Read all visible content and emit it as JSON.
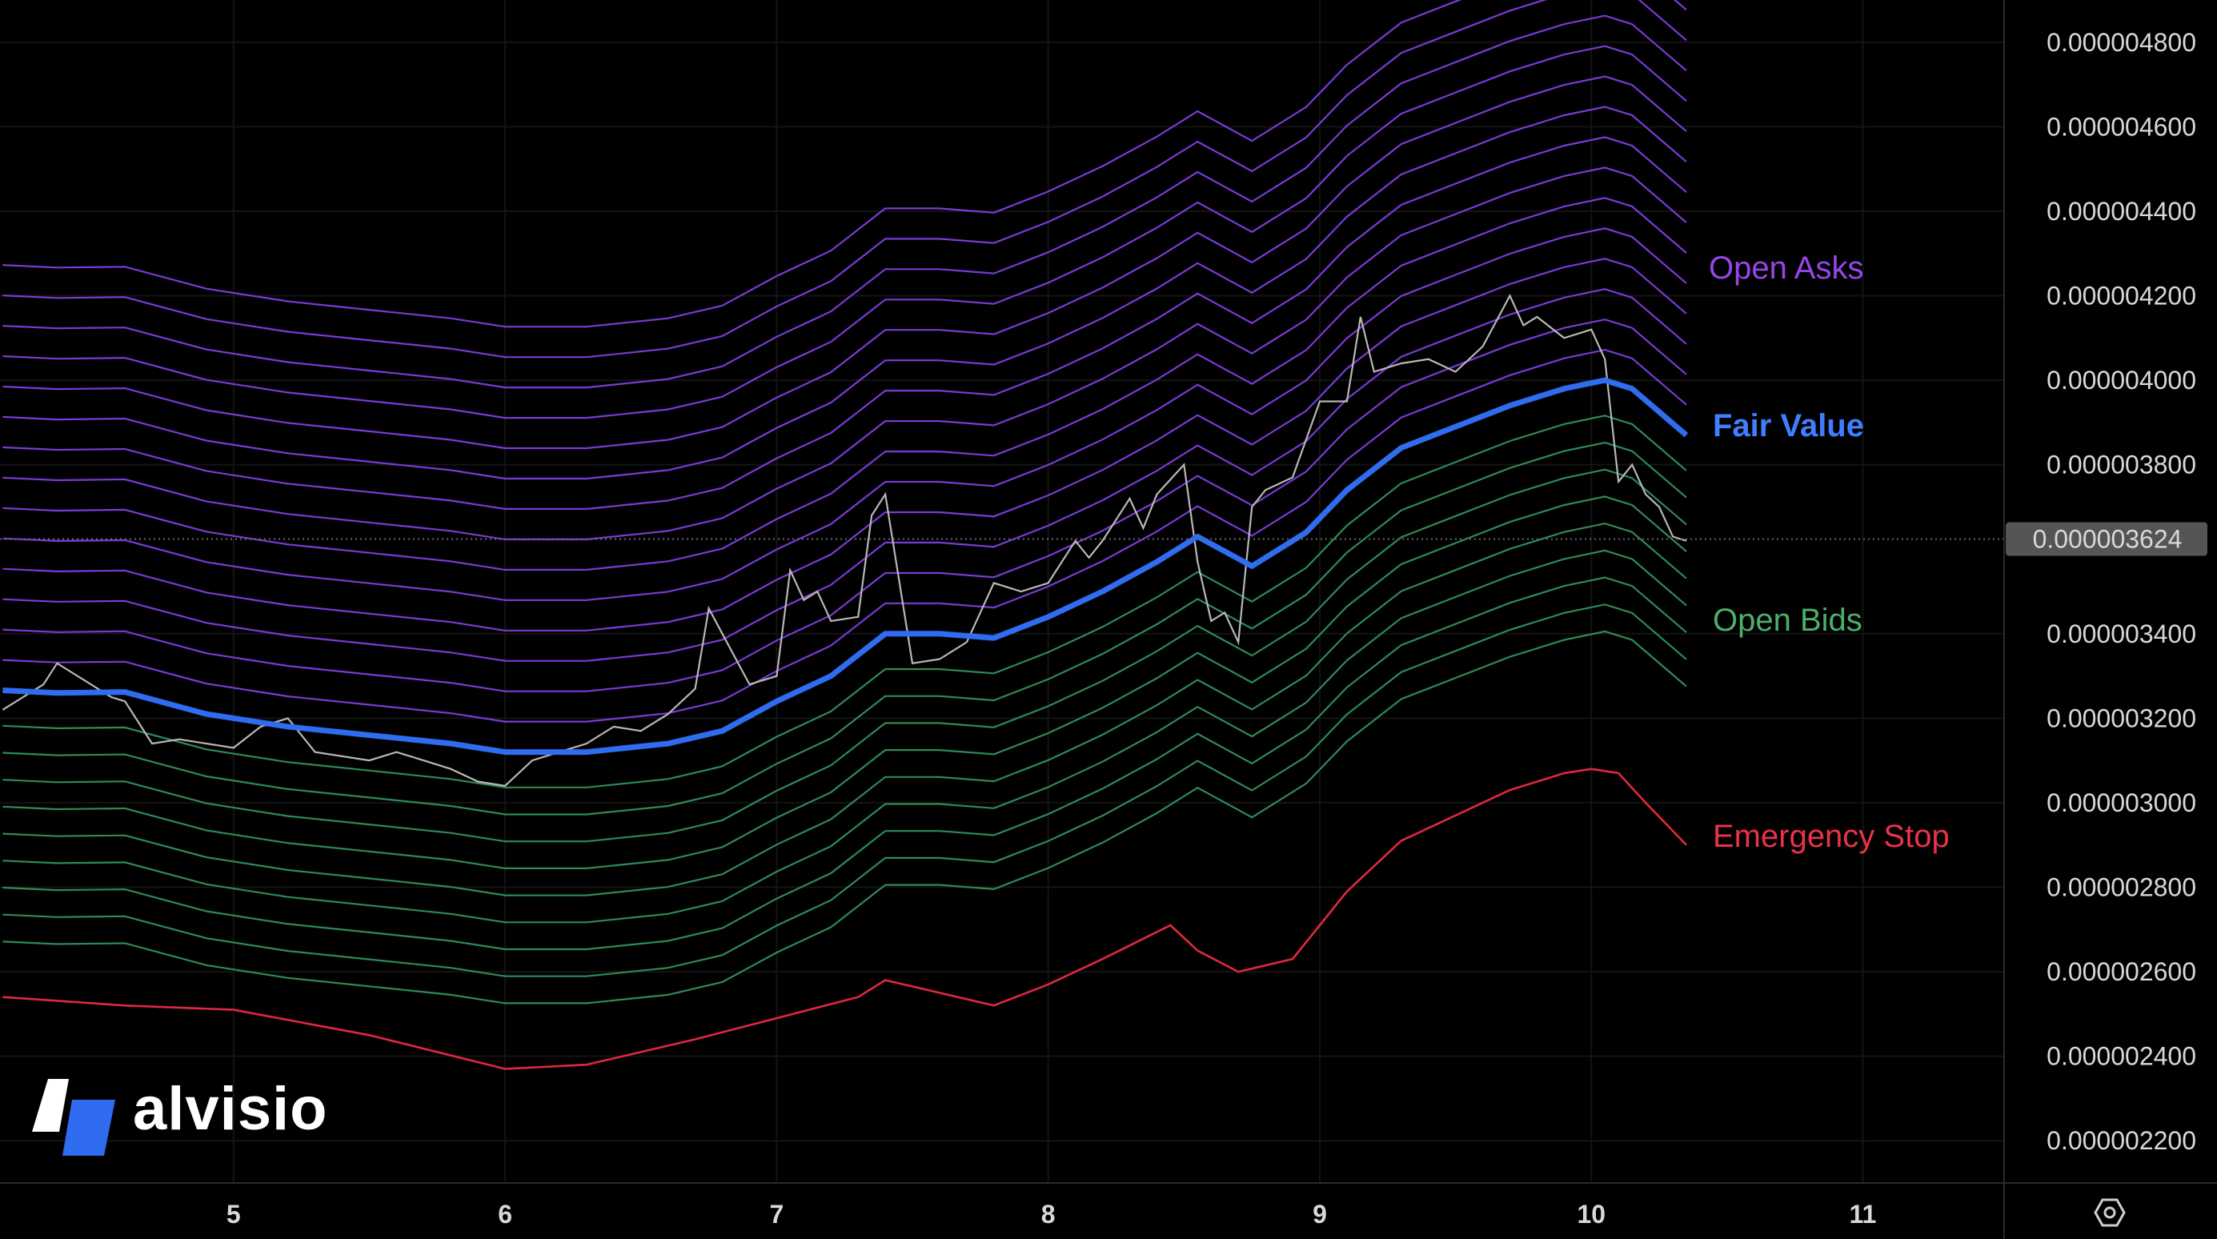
{
  "brand": {
    "name": "alvisio"
  },
  "chart_data": {
    "type": "line",
    "y_ticks": [
      "0.000004800",
      "0.000004600",
      "0.000004400",
      "0.000004200",
      "0.000004000",
      "0.000003800",
      "0.000003400",
      "0.000003200",
      "0.000003000",
      "0.000002800",
      "0.000002600",
      "0.000002400",
      "0.000002200"
    ],
    "ylim": [
      2.1e-06,
      4.9e-06
    ],
    "x_ticks": [
      "5",
      "6",
      "7",
      "8",
      "9",
      "10",
      "11"
    ],
    "x_tick_values": [
      5,
      6,
      7,
      8,
      9,
      10,
      11
    ],
    "xlim": [
      4.14,
      11.52
    ],
    "current_price": 3.624e-06,
    "current_price_label": "0.000003624",
    "band_step": 6.72e-08,
    "ask_levels": 14,
    "bid_levels": 9,
    "labels": {
      "open_asks": "Open Asks",
      "fair_value": "Fair Value",
      "open_bids": "Open Bids",
      "emergency_stop": "Emergency Stop"
    },
    "colors": {
      "fair_value": "#2f6cf0",
      "asks": "#7b3ad6",
      "bids": "#2e8b57",
      "emergency_stop": "#e0283f",
      "price": "#b8b8b8",
      "grid": "#141414",
      "ask_label": "#9646e6",
      "bid_label": "#4caf6a",
      "fair_label": "#3f7fff",
      "stop_label": "#e8334a"
    },
    "series": [
      {
        "name": "Fair Value",
        "x": [
          4.15,
          4.35,
          4.6,
          4.9,
          5.2,
          5.5,
          5.8,
          6.0,
          6.3,
          6.6,
          6.8,
          7.0,
          7.2,
          7.4,
          7.6,
          7.8,
          8.0,
          8.2,
          8.4,
          8.55,
          8.75,
          8.95,
          9.1,
          9.3,
          9.5,
          9.7,
          9.9,
          10.05,
          10.15,
          10.35
        ],
        "y": [
          3.266e-06,
          3.26e-06,
          3.262e-06,
          3.21e-06,
          3.18e-06,
          3.16e-06,
          3.14e-06,
          3.12e-06,
          3.12e-06,
          3.14e-06,
          3.17e-06,
          3.24e-06,
          3.3e-06,
          3.4e-06,
          3.4e-06,
          3.39e-06,
          3.44e-06,
          3.5e-06,
          3.57e-06,
          3.63e-06,
          3.56e-06,
          3.64e-06,
          3.74e-06,
          3.84e-06,
          3.89e-06,
          3.94e-06,
          3.98e-06,
          4e-06,
          3.98e-06,
          3.87e-06
        ]
      },
      {
        "name": "Emergency Stop",
        "x": [
          4.15,
          4.6,
          5.0,
          5.5,
          6.0,
          6.3,
          6.7,
          7.0,
          7.3,
          7.4,
          7.8,
          8.0,
          8.2,
          8.45,
          8.55,
          8.7,
          8.9,
          9.0,
          9.1,
          9.3,
          9.5,
          9.7,
          9.9,
          10.0,
          10.1,
          10.2,
          10.35
        ],
        "y": [
          2.54e-06,
          2.52e-06,
          2.51e-06,
          2.45e-06,
          2.37e-06,
          2.38e-06,
          2.44e-06,
          2.49e-06,
          2.54e-06,
          2.58e-06,
          2.52e-06,
          2.57e-06,
          2.63e-06,
          2.71e-06,
          2.65e-06,
          2.6e-06,
          2.63e-06,
          2.71e-06,
          2.79e-06,
          2.91e-06,
          2.97e-06,
          3.03e-06,
          3.07e-06,
          3.08e-06,
          3.07e-06,
          3e-06,
          2.9e-06
        ]
      },
      {
        "name": "Price",
        "x": [
          4.15,
          4.3,
          4.35,
          4.45,
          4.55,
          4.6,
          4.7,
          4.8,
          5.0,
          5.1,
          5.2,
          5.3,
          5.5,
          5.6,
          5.7,
          5.8,
          5.9,
          6.0,
          6.1,
          6.2,
          6.3,
          6.4,
          6.5,
          6.6,
          6.7,
          6.75,
          6.8,
          6.9,
          7.0,
          7.05,
          7.1,
          7.15,
          7.2,
          7.3,
          7.35,
          7.4,
          7.5,
          7.6,
          7.7,
          7.8,
          7.9,
          8.0,
          8.1,
          8.15,
          8.2,
          8.3,
          8.35,
          8.4,
          8.5,
          8.55,
          8.6,
          8.65,
          8.7,
          8.75,
          8.8,
          8.9,
          9.0,
          9.1,
          9.15,
          9.2,
          9.3,
          9.4,
          9.5,
          9.6,
          9.7,
          9.75,
          9.8,
          9.9,
          10.0,
          10.05,
          10.1,
          10.15,
          10.2,
          10.25,
          10.3,
          10.35
        ],
        "y": [
          3.22e-06,
          3.28e-06,
          3.33e-06,
          3.29e-06,
          3.25e-06,
          3.24e-06,
          3.14e-06,
          3.15e-06,
          3.13e-06,
          3.18e-06,
          3.2e-06,
          3.12e-06,
          3.1e-06,
          3.12e-06,
          3.1e-06,
          3.08e-06,
          3.05e-06,
          3.04e-06,
          3.1e-06,
          3.12e-06,
          3.14e-06,
          3.18e-06,
          3.17e-06,
          3.21e-06,
          3.27e-06,
          3.46e-06,
          3.4e-06,
          3.28e-06,
          3.3e-06,
          3.55e-06,
          3.48e-06,
          3.5e-06,
          3.43e-06,
          3.44e-06,
          3.68e-06,
          3.73e-06,
          3.33e-06,
          3.34e-06,
          3.38e-06,
          3.52e-06,
          3.5e-06,
          3.52e-06,
          3.62e-06,
          3.58e-06,
          3.62e-06,
          3.72e-06,
          3.65e-06,
          3.73e-06,
          3.8e-06,
          3.57e-06,
          3.43e-06,
          3.45e-06,
          3.38e-06,
          3.7e-06,
          3.74e-06,
          3.77e-06,
          3.95e-06,
          3.95e-06,
          4.15e-06,
          4.02e-06,
          4.04e-06,
          4.05e-06,
          4.02e-06,
          4.08e-06,
          4.2e-06,
          4.13e-06,
          4.15e-06,
          4.1e-06,
          4.12e-06,
          4.05e-06,
          3.76e-06,
          3.8e-06,
          3.73e-06,
          3.7e-06,
          3.63e-06,
          3.62e-06
        ]
      }
    ]
  }
}
